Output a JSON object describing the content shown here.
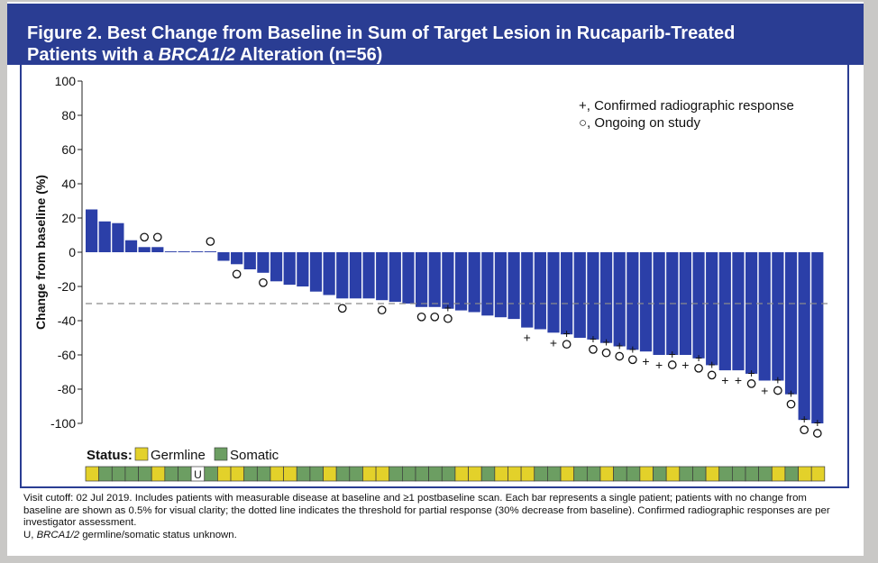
{
  "figure": {
    "title_line1": "Figure 2. Best Change from Baseline in Sum of Target Lesion in Rucaparib-Treated",
    "title_line2_prefix": "Patients with a ",
    "title_line2_italic": "BRCA1/2",
    "title_line2_suffix": " Alteration (n=56)"
  },
  "chart_data": {
    "type": "bar",
    "title": "Best Change from Baseline in Sum of Target Lesion in Rucaparib-Treated Patients with a BRCA1/2 Alteration (n=56)",
    "ylabel": "Change from baseline (%)",
    "ylim": [
      -100,
      100
    ],
    "yticks": [
      100,
      80,
      60,
      40,
      20,
      0,
      -20,
      -40,
      -60,
      -80,
      -100
    ],
    "threshold": -30,
    "bar_color": "#2b3fa8",
    "values": [
      25,
      18,
      17,
      7,
      3,
      3,
      0.5,
      0.5,
      0.5,
      0.5,
      -5,
      -7,
      -10,
      -12,
      -17,
      -19,
      -20,
      -23,
      -25,
      -27,
      -27,
      -27,
      -28,
      -29,
      -30,
      -32,
      -32,
      -33,
      -34,
      -35,
      -37,
      -38,
      -39,
      -44,
      -45,
      -47,
      -48,
      -50,
      -51,
      -53,
      -55,
      -57,
      -58,
      -60,
      -60,
      -60,
      -62,
      -66,
      -69,
      -69,
      -71,
      -75,
      -75,
      -83,
      -98,
      -100
    ],
    "confirmed": [
      0,
      0,
      0,
      0,
      0,
      0,
      0,
      0,
      0,
      0,
      0,
      0,
      0,
      0,
      0,
      0,
      0,
      0,
      0,
      0,
      0,
      0,
      0,
      0,
      0,
      0,
      0,
      1,
      0,
      0,
      0,
      0,
      0,
      1,
      0,
      1,
      1,
      0,
      1,
      1,
      1,
      1,
      1,
      1,
      1,
      1,
      1,
      1,
      1,
      1,
      1,
      1,
      1,
      1,
      1,
      1
    ],
    "ongoing": [
      0,
      0,
      0,
      0,
      1,
      1,
      0,
      0,
      0,
      1,
      0,
      1,
      0,
      1,
      0,
      0,
      0,
      0,
      0,
      1,
      0,
      0,
      1,
      0,
      0,
      1,
      1,
      1,
      0,
      0,
      0,
      0,
      0,
      0,
      0,
      0,
      1,
      0,
      1,
      1,
      1,
      1,
      0,
      0,
      1,
      0,
      1,
      1,
      0,
      0,
      1,
      0,
      1,
      1,
      1,
      1
    ],
    "status": [
      "G",
      "S",
      "S",
      "S",
      "S",
      "G",
      "S",
      "S",
      "U",
      "S",
      "G",
      "G",
      "S",
      "S",
      "G",
      "G",
      "S",
      "S",
      "G",
      "S",
      "S",
      "G",
      "G",
      "S",
      "S",
      "S",
      "S",
      "S",
      "G",
      "G",
      "S",
      "G",
      "G",
      "G",
      "S",
      "S",
      "G",
      "S",
      "S",
      "G",
      "S",
      "S",
      "G",
      "S",
      "G",
      "S",
      "S",
      "G",
      "S",
      "S",
      "S",
      "S",
      "G",
      "S",
      "G",
      "G"
    ],
    "legend": {
      "confirmed_symbol": "+",
      "confirmed_label": "+, Confirmed radiographic response",
      "ongoing_symbol": "○",
      "ongoing_label": "○, Ongoing on study"
    },
    "status_legend": {
      "title": "Status:",
      "germline_label": "Germline",
      "somatic_label": "Somatic",
      "unknown_label": "U",
      "germline_color": "#e3d12a",
      "somatic_color": "#6c9e62"
    }
  },
  "footnote": {
    "line1": "Visit cutoff: 02 Jul 2019. Includes patients with measurable disease at baseline and ≥1 postbaseline scan. Each bar represents a single patient; patients with no change from baseline are shown as 0.5% for visual clarity; the dotted line indicates the threshold for partial response (30% decrease from baseline). Confirmed radiographic responses are per investigator assessment.",
    "u_prefix": "U, ",
    "u_italic": "BRCA1/2",
    "u_suffix": " germline/somatic status unknown."
  }
}
